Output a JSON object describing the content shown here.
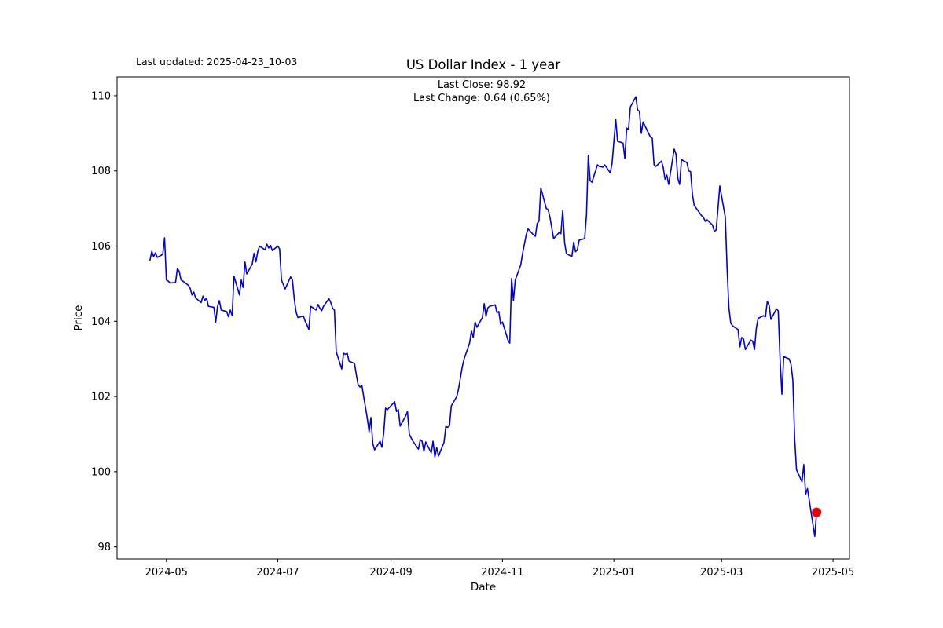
{
  "chart_data": {
    "type": "line",
    "title": "US Dollar Index - 1 year",
    "last_updated": "Last updated: 2025-04-23_10-03",
    "annotation": {
      "line1": "Last Close: 98.92",
      "line2": "Last Change: 0.64 (0.65%)"
    },
    "last_close": 98.92,
    "last_change": "0.64 (0.65%)",
    "xlabel": "Date",
    "ylabel": "Price",
    "x_tick_labels": [
      "2024-05",
      "2024-07",
      "2024-09",
      "2024-11",
      "2025-01",
      "2025-03",
      "2025-05"
    ],
    "y_tick_labels": [
      98,
      100,
      102,
      104,
      106,
      108,
      110
    ],
    "x_range": [
      "2024-04-04",
      "2025-05-10"
    ],
    "y_range": [
      97.68,
      110.5
    ],
    "grid": false,
    "legend_position": "none",
    "background_color": "#ffffff",
    "line_color": "#0000dd",
    "marker_color": "#ee0000",
    "axis_color": "#000000",
    "series": [
      {
        "name": "US Dollar Index",
        "points": [
          [
            "2024-04-22",
            105.62
          ],
          [
            "2024-04-23",
            105.86
          ],
          [
            "2024-04-24",
            105.72
          ],
          [
            "2024-04-25",
            105.82
          ],
          [
            "2024-04-26",
            105.7
          ],
          [
            "2024-04-29",
            105.78
          ],
          [
            "2024-04-30",
            106.22
          ],
          [
            "2024-05-01",
            105.1
          ],
          [
            "2024-05-02",
            105.07
          ],
          [
            "2024-05-03",
            105.02
          ],
          [
            "2024-05-06",
            105.03
          ],
          [
            "2024-05-07",
            105.4
          ],
          [
            "2024-05-08",
            105.33
          ],
          [
            "2024-05-09",
            105.1
          ],
          [
            "2024-05-10",
            105.07
          ],
          [
            "2024-05-13",
            104.96
          ],
          [
            "2024-05-14",
            104.88
          ],
          [
            "2024-05-15",
            104.7
          ],
          [
            "2024-05-16",
            104.78
          ],
          [
            "2024-05-17",
            104.62
          ],
          [
            "2024-05-20",
            104.5
          ],
          [
            "2024-05-21",
            104.67
          ],
          [
            "2024-05-22",
            104.55
          ],
          [
            "2024-05-23",
            104.62
          ],
          [
            "2024-05-24",
            104.4
          ],
          [
            "2024-05-27",
            104.37
          ],
          [
            "2024-05-28",
            103.98
          ],
          [
            "2024-05-29",
            104.4
          ],
          [
            "2024-05-30",
            104.55
          ],
          [
            "2024-05-31",
            104.3
          ],
          [
            "2024-06-03",
            104.26
          ],
          [
            "2024-06-04",
            104.12
          ],
          [
            "2024-06-05",
            104.3
          ],
          [
            "2024-06-06",
            104.15
          ],
          [
            "2024-06-07",
            105.2
          ],
          [
            "2024-06-10",
            104.7
          ],
          [
            "2024-06-11",
            105.1
          ],
          [
            "2024-06-12",
            104.9
          ],
          [
            "2024-06-13",
            105.58
          ],
          [
            "2024-06-14",
            105.26
          ],
          [
            "2024-06-17",
            105.52
          ],
          [
            "2024-06-18",
            105.81
          ],
          [
            "2024-06-19",
            105.58
          ],
          [
            "2024-06-20",
            105.85
          ],
          [
            "2024-06-21",
            106.0
          ],
          [
            "2024-06-24",
            105.9
          ],
          [
            "2024-06-25",
            106.05
          ],
          [
            "2024-06-26",
            105.95
          ],
          [
            "2024-06-27",
            106.02
          ],
          [
            "2024-06-28",
            105.88
          ],
          [
            "2024-07-01",
            106.0
          ],
          [
            "2024-07-02",
            105.92
          ],
          [
            "2024-07-03",
            105.1
          ],
          [
            "2024-07-05",
            104.86
          ],
          [
            "2024-07-08",
            105.18
          ],
          [
            "2024-07-09",
            105.1
          ],
          [
            "2024-07-10",
            104.6
          ],
          [
            "2024-07-11",
            104.25
          ],
          [
            "2024-07-12",
            104.1
          ],
          [
            "2024-07-15",
            104.14
          ],
          [
            "2024-07-16",
            104.0
          ],
          [
            "2024-07-17",
            103.9
          ],
          [
            "2024-07-18",
            103.78
          ],
          [
            "2024-07-19",
            104.4
          ],
          [
            "2024-07-22",
            104.3
          ],
          [
            "2024-07-23",
            104.45
          ],
          [
            "2024-07-24",
            104.35
          ],
          [
            "2024-07-25",
            104.28
          ],
          [
            "2024-07-26",
            104.4
          ],
          [
            "2024-07-29",
            104.6
          ],
          [
            "2024-07-30",
            104.5
          ],
          [
            "2024-07-31",
            104.35
          ],
          [
            "2024-08-01",
            104.3
          ],
          [
            "2024-08-02",
            103.19
          ],
          [
            "2024-08-05",
            102.73
          ],
          [
            "2024-08-06",
            103.15
          ],
          [
            "2024-08-07",
            103.12
          ],
          [
            "2024-08-08",
            103.15
          ],
          [
            "2024-08-09",
            102.94
          ],
          [
            "2024-08-12",
            102.88
          ],
          [
            "2024-08-13",
            102.58
          ],
          [
            "2024-08-14",
            102.31
          ],
          [
            "2024-08-15",
            102.25
          ],
          [
            "2024-08-16",
            102.3
          ],
          [
            "2024-08-19",
            101.42
          ],
          [
            "2024-08-20",
            101.06
          ],
          [
            "2024-08-21",
            101.44
          ],
          [
            "2024-08-22",
            100.75
          ],
          [
            "2024-08-23",
            100.58
          ],
          [
            "2024-08-26",
            100.81
          ],
          [
            "2024-08-27",
            100.65
          ],
          [
            "2024-08-28",
            101.03
          ],
          [
            "2024-08-29",
            101.69
          ],
          [
            "2024-08-30",
            101.65
          ],
          [
            "2024-09-03",
            101.86
          ],
          [
            "2024-09-04",
            101.6
          ],
          [
            "2024-09-05",
            101.65
          ],
          [
            "2024-09-06",
            101.21
          ],
          [
            "2024-09-09",
            101.48
          ],
          [
            "2024-09-10",
            101.6
          ],
          [
            "2024-09-11",
            101.0
          ],
          [
            "2024-09-12",
            100.9
          ],
          [
            "2024-09-13",
            100.81
          ],
          [
            "2024-09-16",
            100.6
          ],
          [
            "2024-09-17",
            100.85
          ],
          [
            "2024-09-18",
            100.81
          ],
          [
            "2024-09-19",
            100.54
          ],
          [
            "2024-09-20",
            100.79
          ],
          [
            "2024-09-23",
            100.5
          ],
          [
            "2024-09-24",
            100.81
          ],
          [
            "2024-09-25",
            100.39
          ],
          [
            "2024-09-26",
            100.64
          ],
          [
            "2024-09-27",
            100.42
          ],
          [
            "2024-09-30",
            100.78
          ],
          [
            "2024-10-01",
            101.2
          ],
          [
            "2024-10-02",
            101.18
          ],
          [
            "2024-10-03",
            101.22
          ],
          [
            "2024-10-04",
            101.75
          ],
          [
            "2024-10-07",
            102.0
          ],
          [
            "2024-10-08",
            102.21
          ],
          [
            "2024-10-09",
            102.5
          ],
          [
            "2024-10-10",
            102.79
          ],
          [
            "2024-10-11",
            103.0
          ],
          [
            "2024-10-14",
            103.42
          ],
          [
            "2024-10-15",
            103.74
          ],
          [
            "2024-10-16",
            103.57
          ],
          [
            "2024-10-17",
            103.98
          ],
          [
            "2024-10-18",
            103.84
          ],
          [
            "2024-10-21",
            104.1
          ],
          [
            "2024-10-22",
            104.47
          ],
          [
            "2024-10-23",
            104.13
          ],
          [
            "2024-10-24",
            104.36
          ],
          [
            "2024-10-25",
            104.4
          ],
          [
            "2024-10-28",
            104.44
          ],
          [
            "2024-10-29",
            104.23
          ],
          [
            "2024-10-30",
            104.26
          ],
          [
            "2024-10-31",
            103.92
          ],
          [
            "2024-11-01",
            103.98
          ],
          [
            "2024-11-04",
            103.5
          ],
          [
            "2024-11-05",
            103.42
          ],
          [
            "2024-11-06",
            105.14
          ],
          [
            "2024-11-07",
            104.55
          ],
          [
            "2024-11-08",
            105.1
          ],
          [
            "2024-11-11",
            105.5
          ],
          [
            "2024-11-12",
            105.8
          ],
          [
            "2024-11-13",
            106.05
          ],
          [
            "2024-11-14",
            106.3
          ],
          [
            "2024-11-15",
            106.46
          ],
          [
            "2024-11-18",
            106.3
          ],
          [
            "2024-11-19",
            106.26
          ],
          [
            "2024-11-20",
            106.6
          ],
          [
            "2024-11-21",
            106.66
          ],
          [
            "2024-11-22",
            107.55
          ],
          [
            "2024-11-25",
            107.0
          ],
          [
            "2024-11-26",
            106.97
          ],
          [
            "2024-11-27",
            106.77
          ],
          [
            "2024-11-29",
            106.2
          ],
          [
            "2024-12-02",
            106.36
          ],
          [
            "2024-12-03",
            106.33
          ],
          [
            "2024-12-04",
            106.95
          ],
          [
            "2024-12-05",
            106.1
          ],
          [
            "2024-12-06",
            105.8
          ],
          [
            "2024-12-09",
            105.72
          ],
          [
            "2024-12-10",
            106.1
          ],
          [
            "2024-12-11",
            105.85
          ],
          [
            "2024-12-12",
            105.9
          ],
          [
            "2024-12-13",
            106.16
          ],
          [
            "2024-12-16",
            106.2
          ],
          [
            "2024-12-17",
            106.83
          ],
          [
            "2024-12-18",
            108.42
          ],
          [
            "2024-12-19",
            107.74
          ],
          [
            "2024-12-20",
            107.7
          ],
          [
            "2024-12-23",
            108.16
          ],
          [
            "2024-12-24",
            108.12
          ],
          [
            "2024-12-26",
            108.1
          ],
          [
            "2024-12-27",
            108.16
          ],
          [
            "2024-12-30",
            107.95
          ],
          [
            "2024-12-31",
            108.2
          ],
          [
            "2025-01-02",
            109.37
          ],
          [
            "2025-01-03",
            108.79
          ],
          [
            "2025-01-06",
            108.74
          ],
          [
            "2025-01-07",
            108.33
          ],
          [
            "2025-01-08",
            109.14
          ],
          [
            "2025-01-09",
            109.1
          ],
          [
            "2025-01-10",
            109.7
          ],
          [
            "2025-01-13",
            109.97
          ],
          [
            "2025-01-14",
            109.62
          ],
          [
            "2025-01-15",
            109.58
          ],
          [
            "2025-01-16",
            109.0
          ],
          [
            "2025-01-17",
            109.3
          ],
          [
            "2025-01-21",
            108.9
          ],
          [
            "2025-01-22",
            108.87
          ],
          [
            "2025-01-23",
            108.16
          ],
          [
            "2025-01-24",
            108.12
          ],
          [
            "2025-01-27",
            108.26
          ],
          [
            "2025-01-28",
            108.1
          ],
          [
            "2025-01-29",
            107.78
          ],
          [
            "2025-01-30",
            107.89
          ],
          [
            "2025-01-31",
            107.64
          ],
          [
            "2025-02-03",
            108.58
          ],
          [
            "2025-02-04",
            108.45
          ],
          [
            "2025-02-05",
            107.8
          ],
          [
            "2025-02-06",
            107.64
          ],
          [
            "2025-02-07",
            108.3
          ],
          [
            "2025-02-10",
            108.22
          ],
          [
            "2025-02-11",
            108.0
          ],
          [
            "2025-02-12",
            107.98
          ],
          [
            "2025-02-13",
            107.37
          ],
          [
            "2025-02-14",
            107.08
          ],
          [
            "2025-02-18",
            106.81
          ],
          [
            "2025-02-19",
            106.77
          ],
          [
            "2025-02-20",
            106.66
          ],
          [
            "2025-02-21",
            106.7
          ],
          [
            "2025-02-24",
            106.56
          ],
          [
            "2025-02-25",
            106.39
          ],
          [
            "2025-02-26",
            106.43
          ],
          [
            "2025-02-27",
            107.0
          ],
          [
            "2025-02-28",
            107.6
          ],
          [
            "2025-03-03",
            106.77
          ],
          [
            "2025-03-04",
            105.39
          ],
          [
            "2025-03-05",
            104.35
          ],
          [
            "2025-03-06",
            103.95
          ],
          [
            "2025-03-07",
            103.88
          ],
          [
            "2025-03-10",
            103.78
          ],
          [
            "2025-03-11",
            103.32
          ],
          [
            "2025-03-12",
            103.57
          ],
          [
            "2025-03-13",
            103.53
          ],
          [
            "2025-03-14",
            103.25
          ],
          [
            "2025-03-17",
            103.5
          ],
          [
            "2025-03-18",
            103.47
          ],
          [
            "2025-03-19",
            103.25
          ],
          [
            "2025-03-20",
            103.82
          ],
          [
            "2025-03-21",
            104.08
          ],
          [
            "2025-03-24",
            104.15
          ],
          [
            "2025-03-25",
            104.12
          ],
          [
            "2025-03-26",
            104.53
          ],
          [
            "2025-03-27",
            104.43
          ],
          [
            "2025-03-28",
            104.05
          ],
          [
            "2025-03-31",
            104.33
          ],
          [
            "2025-04-01",
            104.28
          ],
          [
            "2025-04-02",
            103.0
          ],
          [
            "2025-04-03",
            102.06
          ],
          [
            "2025-04-04",
            103.06
          ],
          [
            "2025-04-07",
            103.0
          ],
          [
            "2025-04-08",
            102.85
          ],
          [
            "2025-04-09",
            102.43
          ],
          [
            "2025-04-10",
            100.87
          ],
          [
            "2025-04-11",
            100.05
          ],
          [
            "2025-04-14",
            99.73
          ],
          [
            "2025-04-15",
            100.19
          ],
          [
            "2025-04-16",
            99.4
          ],
          [
            "2025-04-17",
            99.55
          ],
          [
            "2025-04-21",
            98.28
          ],
          [
            "2025-04-22",
            98.92
          ]
        ]
      }
    ]
  }
}
